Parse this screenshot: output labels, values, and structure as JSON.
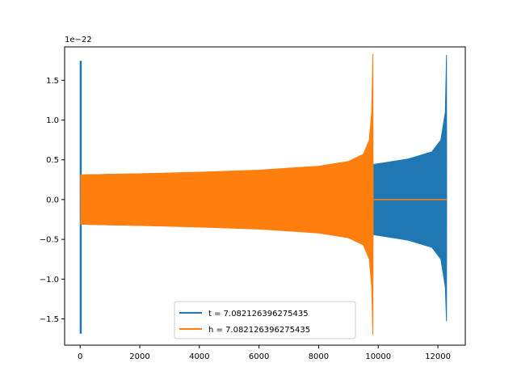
{
  "chart_data": {
    "type": "line",
    "title": "",
    "xlabel": "",
    "ylabel": "",
    "xlim": [
      -520,
      12920
    ],
    "ylim": [
      -1.83e-22,
      1.92e-22
    ],
    "y_offset_label": "1e−22",
    "xticks": [
      0,
      2000,
      4000,
      6000,
      8000,
      10000,
      12000
    ],
    "xtick_labels": [
      "0",
      "2000",
      "4000",
      "6000",
      "8000",
      "10000",
      "12000"
    ],
    "yticks": [
      -1.5,
      -1.0,
      -0.5,
      0.0,
      0.5,
      1.0,
      1.5
    ],
    "ytick_labels": [
      "−1.5",
      "−1.0",
      "−0.5",
      "0.0",
      "0.5",
      "1.0",
      "1.5"
    ],
    "grid": false,
    "legend_position": "lower-center",
    "series": [
      {
        "name": "t = 7.082126396275435",
        "color": "#1f77b4",
        "envelope": {
          "x": [
            0,
            40,
            40,
            2000,
            4000,
            6000,
            8000,
            9800,
            9820,
            11000,
            11800,
            12100,
            12250,
            12290,
            12295
          ],
          "upper": [
            1.74,
            1.74,
            0.31,
            0.325,
            0.34,
            0.36,
            0.38,
            0.43,
            0.44,
            0.51,
            0.6,
            0.75,
            1.1,
            1.82,
            0.0
          ],
          "lower": [
            -1.68,
            -1.68,
            -0.31,
            -0.325,
            -0.34,
            -0.36,
            -0.38,
            -0.43,
            -0.44,
            -0.51,
            -0.6,
            -0.75,
            -1.1,
            -1.53,
            0.0
          ]
        }
      },
      {
        "name": "h = 7.082126396275435",
        "color": "#ff7f0e",
        "envelope": {
          "x": [
            0,
            20,
            20,
            2000,
            4000,
            6000,
            8000,
            9000,
            9500,
            9700,
            9780,
            9820,
            9830,
            12300
          ],
          "upper": [
            0.0,
            0.0,
            0.31,
            0.325,
            0.345,
            0.37,
            0.42,
            0.48,
            0.57,
            0.75,
            1.1,
            1.83,
            0.0,
            0.0
          ],
          "lower": [
            0.0,
            0.0,
            -0.31,
            -0.325,
            -0.345,
            -0.37,
            -0.42,
            -0.48,
            -0.57,
            -0.75,
            -1.1,
            -1.7,
            0.0,
            0.0
          ]
        }
      }
    ]
  }
}
